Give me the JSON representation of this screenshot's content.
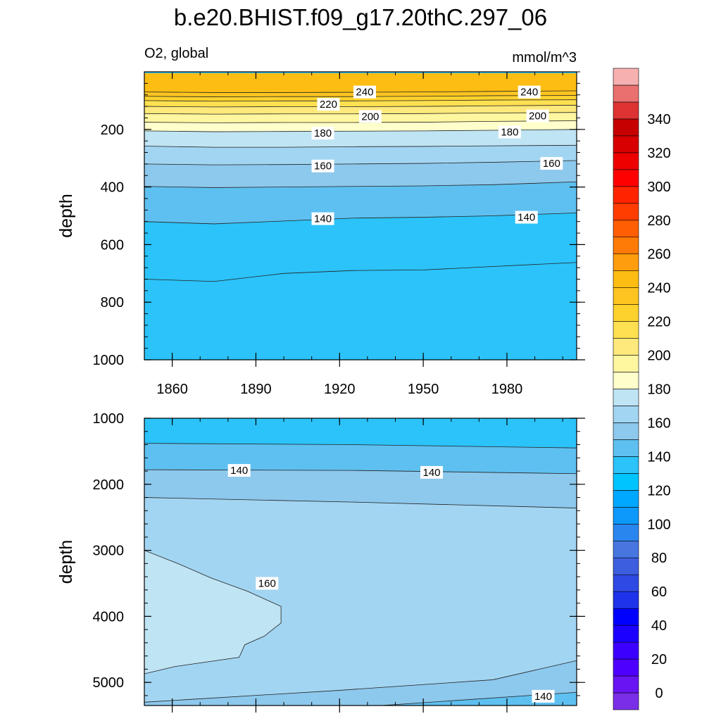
{
  "figure": {
    "title": "b.e20.BHIST.f09_g17.20thC.297_06",
    "left_string": "O2, global",
    "right_string": "mmol/m^3"
  },
  "colorbar": {
    "levels": [
      0,
      10,
      20,
      30,
      40,
      50,
      60,
      70,
      80,
      90,
      100,
      110,
      120,
      130,
      140,
      150,
      160,
      170,
      180,
      190,
      200,
      210,
      220,
      230,
      240,
      250,
      260,
      270,
      280,
      290,
      300,
      310,
      320,
      330,
      340,
      350
    ],
    "labels": [
      "0",
      "20",
      "40",
      "60",
      "80",
      "100",
      "120",
      "140",
      "160",
      "180",
      "200",
      "220",
      "240",
      "260",
      "280",
      "300",
      "320",
      "340"
    ],
    "colors": [
      "#7b2ee8",
      "#6914f2",
      "#4e00ff",
      "#3c00ff",
      "#1c00ff",
      "#0000ff",
      "#1f33ea",
      "#2f49e4",
      "#3e5ee0",
      "#4776e1",
      "#2a86ef",
      "#0d99fb",
      "#00a8ff",
      "#00c4ff",
      "#2bc3f9",
      "#5ec0f0",
      "#8dc8ed",
      "#a2d5f2",
      "#bfe4f4",
      "#ffffcc",
      "#fff6a0",
      "#fee97c",
      "#fee050",
      "#fdd22c",
      "#fec520",
      "#fdbd12",
      "#fe9d0e",
      "#ff7b07",
      "#ff5e03",
      "#ff3d00",
      "#ff2400",
      "#ff0000",
      "#ee0000",
      "#d80000",
      "#c60000",
      "#dd3333",
      "#ea7070",
      "#f7b0b0"
    ]
  },
  "chart_data": [
    {
      "type": "contour",
      "panel": "upper",
      "xlabel": "",
      "ylabel": "depth",
      "xlim": [
        1850,
        2005
      ],
      "ylim": [
        1000,
        0
      ],
      "xticks": [
        1860,
        1890,
        1920,
        1950,
        1980
      ],
      "xtick_labels": [
        "1860",
        "1890",
        "1920",
        "1950",
        "1980"
      ],
      "yticks": [
        200,
        400,
        600,
        800,
        1000
      ],
      "ytick_labels": [
        "200",
        "400",
        "600",
        "800",
        "1000"
      ],
      "data_top": 5,
      "contours": [
        {
          "level": 240,
          "depth": [
            70,
            72,
            72,
            71,
            70,
            68,
            66
          ]
        },
        {
          "level": 230,
          "depth": [
            85,
            87,
            86,
            86,
            85,
            83,
            82
          ]
        },
        {
          "level": 220,
          "depth": [
            100,
            102,
            101,
            101,
            100,
            98,
            97
          ]
        },
        {
          "level": 210,
          "depth": [
            120,
            122,
            121,
            121,
            120,
            118,
            116
          ]
        },
        {
          "level": 200,
          "depth": [
            145,
            147,
            146,
            146,
            145,
            143,
            141
          ]
        },
        {
          "level": 190,
          "depth": [
            175,
            177,
            176,
            176,
            175,
            172,
            170
          ]
        },
        {
          "level": 180,
          "depth": [
            205,
            208,
            207,
            206,
            205,
            203,
            200
          ]
        },
        {
          "level": 170,
          "depth": [
            258,
            262,
            262,
            260,
            259,
            257,
            255
          ]
        },
        {
          "level": 160,
          "depth": [
            320,
            323,
            322,
            320,
            318,
            314,
            308
          ]
        },
        {
          "level": 150,
          "depth": [
            398,
            402,
            400,
            398,
            396,
            392,
            382
          ]
        },
        {
          "level": 140,
          "depth": [
            520,
            528,
            518,
            508,
            505,
            500,
            490
          ]
        },
        {
          "level": 130,
          "depth": [
            720,
            728,
            700,
            690,
            688,
            676,
            662
          ]
        }
      ],
      "contour_x": [
        1850,
        1875,
        1900,
        1925,
        1950,
        1975,
        2005
      ],
      "fill_below_color": "#2bc3f9",
      "labels": [
        {
          "text": "240",
          "x": 1929,
          "depth": 70
        },
        {
          "text": "240",
          "x": 1988,
          "depth": 70
        },
        {
          "text": "220",
          "x": 1916,
          "depth": 113
        },
        {
          "text": "200",
          "x": 1931,
          "depth": 155
        },
        {
          "text": "200",
          "x": 1991,
          "depth": 153
        },
        {
          "text": "180",
          "x": 1914,
          "depth": 213
        },
        {
          "text": "180",
          "x": 1981,
          "depth": 209
        },
        {
          "text": "160",
          "x": 1914,
          "depth": 327
        },
        {
          "text": "160",
          "x": 1996,
          "depth": 318
        },
        {
          "text": "140",
          "x": 1914,
          "depth": 510
        },
        {
          "text": "140",
          "x": 1987,
          "depth": 505
        }
      ]
    },
    {
      "type": "contour",
      "panel": "lower",
      "xlabel": "",
      "ylabel": "depth",
      "xlim": [
        1850,
        2005
      ],
      "ylim": [
        5350,
        1000
      ],
      "yticks": [
        1000,
        2000,
        3000,
        4000,
        5000
      ],
      "ytick_labels": [
        "1000",
        "2000",
        "3000",
        "4000",
        "5000"
      ],
      "fill_base_color": "#a2d5f2",
      "top_fill_color": "#2bc3f9",
      "lines": [
        {
          "level": 130,
          "points": [
            [
              1850,
              1380
            ],
            [
              1925,
              1400
            ],
            [
              2005,
              1450
            ]
          ]
        },
        {
          "level": 140,
          "points": [
            [
              1850,
              1780
            ],
            [
              1925,
              1790
            ],
            [
              2005,
              1840
            ]
          ]
        },
        {
          "level": 150,
          "points": [
            [
              1850,
              2200
            ],
            [
              1925,
              2270
            ],
            [
              2005,
              2360
            ]
          ]
        }
      ],
      "bowl": {
        "level": 160,
        "points": [
          [
            1850,
            3000
          ],
          [
            1862,
            3200
          ],
          [
            1874,
            3420
          ],
          [
            1887,
            3620
          ],
          [
            1899,
            3850
          ],
          [
            1899,
            4100
          ],
          [
            1893,
            4300
          ],
          [
            1886,
            4430
          ],
          [
            1884,
            4620
          ],
          [
            1861,
            4760
          ],
          [
            1850,
            4870
          ]
        ]
      },
      "bottom_lines": [
        {
          "level": 150,
          "points": [
            [
              1850,
              5300
            ],
            [
              1920,
              5120
            ],
            [
              1975,
              4960
            ],
            [
              2005,
              4670
            ]
          ]
        },
        {
          "level": 140,
          "points": [
            [
              1935,
              5350
            ],
            [
              2005,
              5150
            ]
          ]
        }
      ],
      "labels": [
        {
          "text": "140",
          "x": 1884,
          "depth": 1790
        },
        {
          "text": "140",
          "x": 1953,
          "depth": 1820
        },
        {
          "text": "160",
          "x": 1894,
          "depth": 3500
        },
        {
          "text": "140",
          "x": 1993,
          "depth": 5210
        }
      ]
    }
  ]
}
